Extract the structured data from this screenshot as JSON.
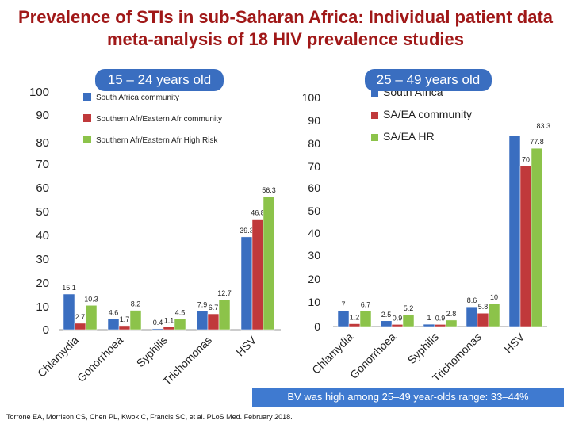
{
  "title": "Prevalence of STIs in sub-Saharan Africa: Individual patient data meta-analysis of 18 HIV prevalence studies",
  "colors": {
    "title": "#a01818",
    "series1": "#3a6ec0",
    "series2": "#c0393b",
    "series3": "#8cc34a",
    "label_box": "#3a6ec0"
  },
  "chart_data": [
    {
      "type": "bar",
      "title": "15 – 24 years old",
      "categories": [
        "Chlamydia",
        "Gonorrhoea",
        "Syphilis",
        "Trichomonas",
        "HSV"
      ],
      "series": [
        {
          "name": "South Africa community",
          "values": [
            15.1,
            4.6,
            0.4,
            7.9,
            39.3
          ],
          "labels": [
            "15.1",
            "4.6",
            "0.4",
            "7.9",
            "39.3"
          ]
        },
        {
          "name": "Southern Afr/Eastern Afr community",
          "values": [
            2.7,
            1.7,
            1.1,
            6.7,
            46.8
          ],
          "labels": [
            "2.7",
            "1.7",
            "1.1",
            "6.7",
            "46.8"
          ]
        },
        {
          "name": "Southern Afr/Eastern Afr High Risk",
          "values": [
            10.3,
            8.2,
            4.5,
            12.7,
            56.3
          ],
          "labels": [
            "10.3",
            "8.2",
            "4.5",
            "12.7",
            "56.3"
          ]
        }
      ],
      "yticks": [
        "0",
        "10",
        "20",
        "30",
        "40",
        "50",
        "60",
        "70",
        "80",
        "90",
        "100"
      ],
      "ylim": [
        0,
        100
      ],
      "legend": "top"
    },
    {
      "type": "bar",
      "title": "25 – 49 years old",
      "categories": [
        "Chlamydia",
        "Gonorrhoea",
        "Syphilis",
        "Trichomonas",
        "HSV"
      ],
      "series": [
        {
          "name": "South Africa",
          "values": [
            7,
            2.5,
            1,
            8.6,
            83.3
          ],
          "labels": [
            "7",
            "2.5",
            "1",
            "8.6",
            ""
          ]
        },
        {
          "name": "SA/EA community",
          "values": [
            1.2,
            0.9,
            0.9,
            5.8,
            70
          ],
          "labels": [
            "1.2",
            "0.9",
            "0.9",
            "5.8",
            "70"
          ]
        },
        {
          "name": "SA/EA HR",
          "values": [
            6.7,
            5.2,
            2.8,
            10,
            77.8
          ],
          "labels": [
            "6.7",
            "5.2",
            "2.8",
            "10",
            "77.8"
          ]
        }
      ],
      "extra_labels": [
        "83.3"
      ],
      "yticks": [
        "0",
        "10",
        "20",
        "30",
        "40",
        "50",
        "60",
        "70",
        "80",
        "90",
        "100"
      ],
      "ylim": [
        0,
        100
      ],
      "legend": "top-right"
    }
  ],
  "banner": "BV was high among 25–49 year-olds range: 33–44%",
  "citation": "Torrone EA, Morrison CS, Chen PL, Kwok C, Francis SC, et al. PLoS Med. February 2018."
}
